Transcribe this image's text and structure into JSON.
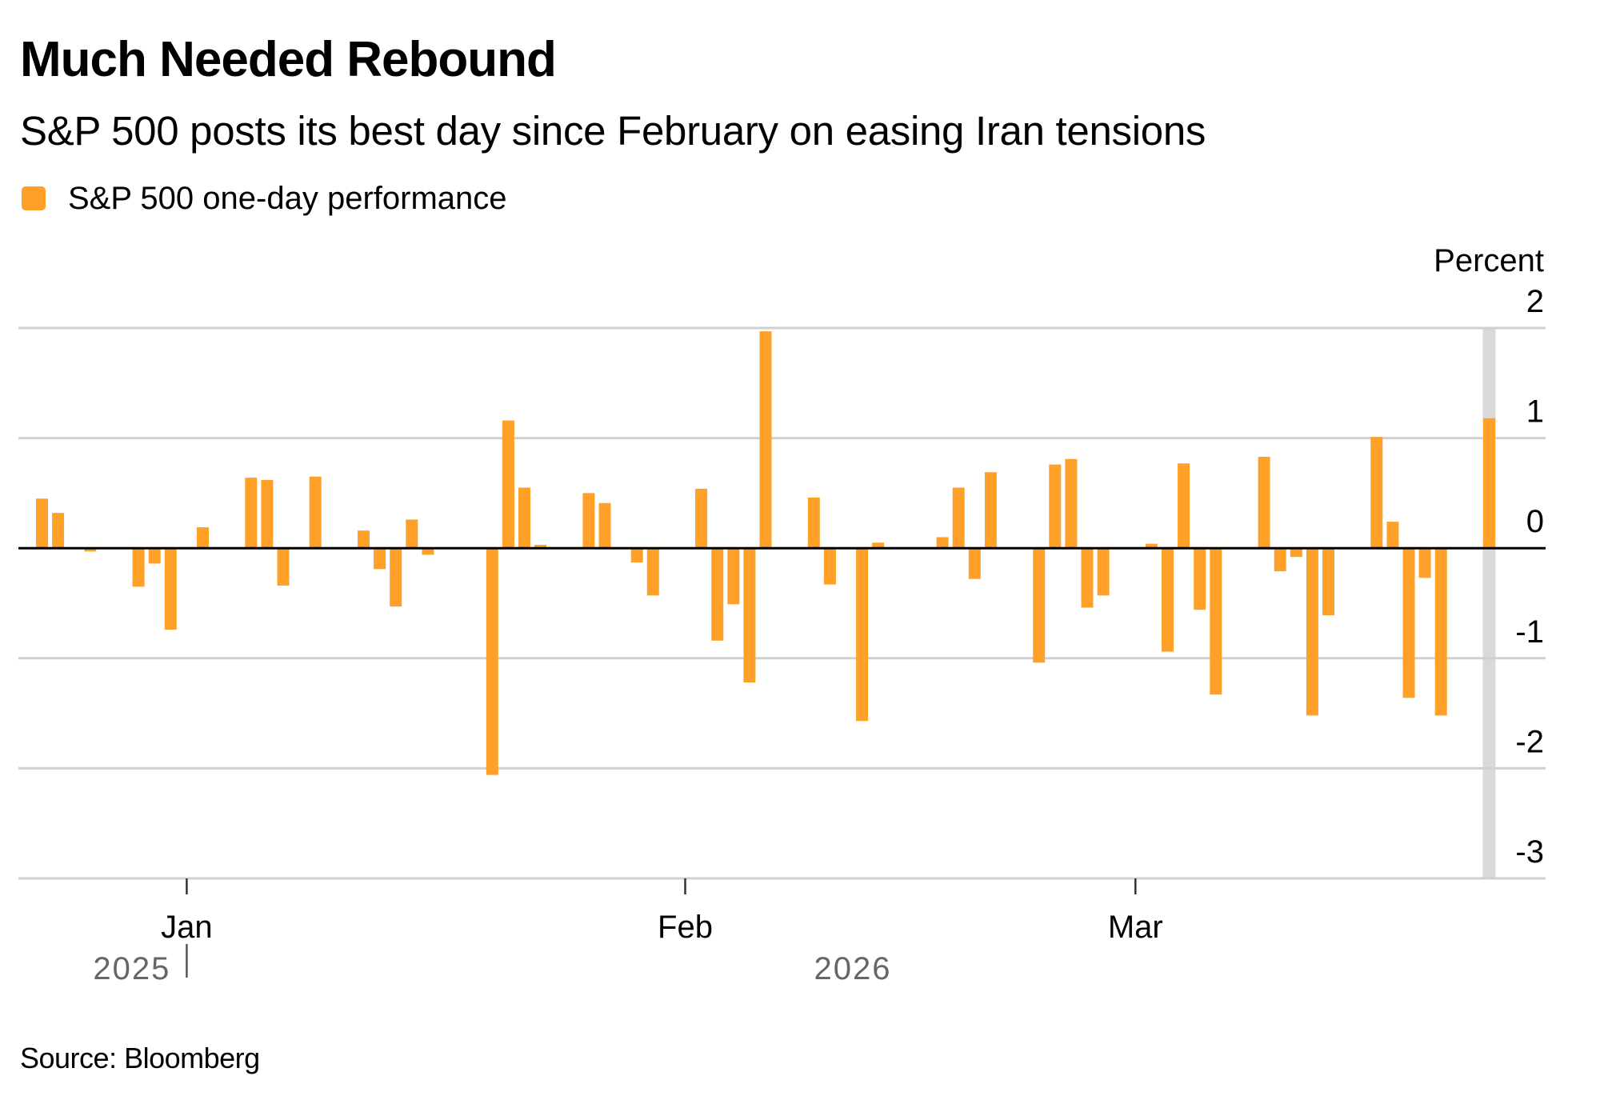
{
  "header": {
    "title": "Much Needed Rebound",
    "subtitle": "S&P 500 posts its best day since February on easing Iran tensions"
  },
  "legend": {
    "items": [
      {
        "label": "S&P 500 one-day performance",
        "color": "#FFA028"
      }
    ]
  },
  "footer": {
    "source": "Source: Bloomberg"
  },
  "colors": {
    "bar": "#FFA028",
    "highlight_band": "#D9D9D9",
    "gridline": "#D0D0D0",
    "zero_line": "#000000",
    "tick_text": "#000000",
    "year_text": "#666666"
  },
  "chart_data": {
    "type": "bar",
    "title": "Much Needed Rebound",
    "subtitle": "S&P 500 posts its best day since February on easing Iran tensions",
    "xlabel": "",
    "ylabel": "Percent",
    "ylim": [
      -3,
      2
    ],
    "yticks": [
      2,
      1,
      0,
      -1,
      -2,
      -3
    ],
    "xlim": [
      "2025-12-21",
      "2026-03-26"
    ],
    "xticks": [
      {
        "date": "2026-01-01",
        "label": "Jan"
      },
      {
        "date": "2026-02-01",
        "label": "Feb"
      },
      {
        "date": "2026-03-01",
        "label": "Mar"
      }
    ],
    "year_labels": [
      {
        "label": "2025",
        "side": "left-of",
        "date": "2026-01-01"
      },
      {
        "label": "2026",
        "position": "center"
      }
    ],
    "grid": true,
    "legend_position": "top-left",
    "highlight": {
      "date": "2026-03-23"
    },
    "series": [
      {
        "name": "S&P 500 one-day performance",
        "points": [
          {
            "date": "2025-12-23",
            "value": 0.45
          },
          {
            "date": "2025-12-24",
            "value": 0.32
          },
          {
            "date": "2025-12-26",
            "value": -0.03
          },
          {
            "date": "2025-12-29",
            "value": -0.35
          },
          {
            "date": "2025-12-30",
            "value": -0.14
          },
          {
            "date": "2025-12-31",
            "value": -0.74
          },
          {
            "date": "2026-01-02",
            "value": 0.19
          },
          {
            "date": "2026-01-05",
            "value": 0.64
          },
          {
            "date": "2026-01-06",
            "value": 0.62
          },
          {
            "date": "2026-01-07",
            "value": -0.34
          },
          {
            "date": "2026-01-08",
            "value": -0.01
          },
          {
            "date": "2026-01-09",
            "value": 0.65
          },
          {
            "date": "2026-01-12",
            "value": 0.16
          },
          {
            "date": "2026-01-13",
            "value": -0.19
          },
          {
            "date": "2026-01-14",
            "value": -0.53
          },
          {
            "date": "2026-01-15",
            "value": 0.26
          },
          {
            "date": "2026-01-16",
            "value": -0.06
          },
          {
            "date": "2026-01-20",
            "value": -2.06
          },
          {
            "date": "2026-01-21",
            "value": 1.16
          },
          {
            "date": "2026-01-22",
            "value": 0.55
          },
          {
            "date": "2026-01-23",
            "value": 0.03
          },
          {
            "date": "2026-01-26",
            "value": 0.5
          },
          {
            "date": "2026-01-27",
            "value": 0.41
          },
          {
            "date": "2026-01-28",
            "value": -0.01
          },
          {
            "date": "2026-01-29",
            "value": -0.13
          },
          {
            "date": "2026-01-30",
            "value": -0.43
          },
          {
            "date": "2026-02-02",
            "value": 0.54
          },
          {
            "date": "2026-02-03",
            "value": -0.84
          },
          {
            "date": "2026-02-04",
            "value": -0.51
          },
          {
            "date": "2026-02-05",
            "value": -1.22
          },
          {
            "date": "2026-02-06",
            "value": 1.97
          },
          {
            "date": "2026-02-09",
            "value": 0.46
          },
          {
            "date": "2026-02-10",
            "value": -0.33
          },
          {
            "date": "2026-02-11",
            "value": 0.0
          },
          {
            "date": "2026-02-12",
            "value": -1.57
          },
          {
            "date": "2026-02-13",
            "value": 0.05
          },
          {
            "date": "2026-02-17",
            "value": 0.1
          },
          {
            "date": "2026-02-18",
            "value": 0.55
          },
          {
            "date": "2026-02-19",
            "value": -0.28
          },
          {
            "date": "2026-02-20",
            "value": 0.69
          },
          {
            "date": "2026-02-23",
            "value": -1.04
          },
          {
            "date": "2026-02-24",
            "value": 0.76
          },
          {
            "date": "2026-02-25",
            "value": 0.81
          },
          {
            "date": "2026-02-26",
            "value": -0.54
          },
          {
            "date": "2026-02-27",
            "value": -0.43
          },
          {
            "date": "2026-03-02",
            "value": 0.04
          },
          {
            "date": "2026-03-03",
            "value": -0.94
          },
          {
            "date": "2026-03-04",
            "value": 0.77
          },
          {
            "date": "2026-03-05",
            "value": -0.56
          },
          {
            "date": "2026-03-06",
            "value": -1.33
          },
          {
            "date": "2026-03-09",
            "value": 0.83
          },
          {
            "date": "2026-03-10",
            "value": -0.21
          },
          {
            "date": "2026-03-11",
            "value": -0.08
          },
          {
            "date": "2026-03-12",
            "value": -1.52
          },
          {
            "date": "2026-03-13",
            "value": -0.61
          },
          {
            "date": "2026-03-16",
            "value": 1.01
          },
          {
            "date": "2026-03-17",
            "value": 0.24
          },
          {
            "date": "2026-03-18",
            "value": -1.36
          },
          {
            "date": "2026-03-19",
            "value": -0.27
          },
          {
            "date": "2026-03-20",
            "value": -1.52
          },
          {
            "date": "2026-03-23",
            "value": 1.18
          }
        ]
      }
    ]
  }
}
